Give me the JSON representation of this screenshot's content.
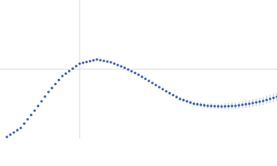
{
  "chart_data": {
    "type": "scatter",
    "x": [
      10,
      15,
      20,
      25,
      30,
      35,
      40,
      45,
      50,
      55,
      60,
      65,
      70,
      75,
      80,
      85,
      90,
      95,
      100,
      105,
      110,
      115,
      120,
      125,
      130,
      135,
      140,
      145,
      150,
      155,
      160,
      165,
      170,
      175,
      180,
      185,
      190,
      195,
      200,
      205,
      210,
      215,
      220,
      225,
      230,
      235,
      240,
      245,
      250,
      255,
      260,
      265,
      270,
      275,
      280,
      285,
      290,
      295,
      300,
      305,
      310,
      315,
      320,
      325,
      330,
      335,
      340,
      345,
      350,
      355,
      360,
      365,
      370,
      375,
      380,
      385,
      390,
      395,
      400
    ],
    "series": [
      {
        "color": "#3a62b0",
        "error_color": "#a9bde3",
        "values": [
          2,
          5.3,
          8.5,
          11.8,
          15,
          21.3,
          27.5,
          33.8,
          40,
          46.8,
          53.5,
          60.3,
          67,
          72.8,
          78.5,
          84.3,
          90,
          93.6,
          97.2,
          100.8,
          104.4,
          108,
          109.2,
          110.4,
          111.6,
          112.8,
          114,
          113,
          112,
          111,
          110,
          108,
          106,
          104,
          102,
          99.5,
          97,
          94.5,
          92,
          89,
          86,
          83,
          80,
          77,
          74,
          71,
          68,
          65.3,
          62.5,
          59.8,
          57,
          55.3,
          53.5,
          51.8,
          50,
          49.3,
          48.5,
          47.8,
          47,
          46.8,
          46.5,
          46.3,
          46,
          46.3,
          46.5,
          46.8,
          47,
          47.8,
          48.5,
          49.3,
          50,
          51,
          52,
          53,
          54,
          55.5,
          57,
          58.5,
          60
        ],
        "errors": [
          0.5,
          0.5,
          0.5,
          0.5,
          0.5,
          0.5,
          0.5,
          0.5,
          0.5,
          0.5,
          0.5,
          0.5,
          0.5,
          0.5,
          0.5,
          0.5,
          0.5,
          0.5,
          0.5,
          0.5,
          0.5,
          0.5,
          0.5,
          0.5,
          0.5,
          0.5,
          0.5,
          0.5,
          0.5,
          0.5,
          0.5,
          0.5,
          0.5,
          0.5,
          0.5,
          0.5,
          0.5,
          0.5,
          1,
          1,
          1,
          1,
          1,
          1,
          1.5,
          1.5,
          1.5,
          2,
          2,
          2,
          2.5,
          2.5,
          2.5,
          3,
          3,
          3,
          3.5,
          3.5,
          3.5,
          4,
          4,
          4,
          4,
          4.5,
          4.5,
          4.5,
          5,
          5,
          5,
          5,
          5.5,
          5.5,
          5.5,
          6,
          6,
          6,
          6,
          6.5,
          6.5
        ]
      }
    ],
    "xlim": [
      0,
      400
    ],
    "ylim": [
      0,
      200
    ],
    "xticks": [
      115
    ],
    "yticks": [
      100
    ],
    "grid": true,
    "grid_color": "#d4d4d4",
    "tick_labels": false
  }
}
